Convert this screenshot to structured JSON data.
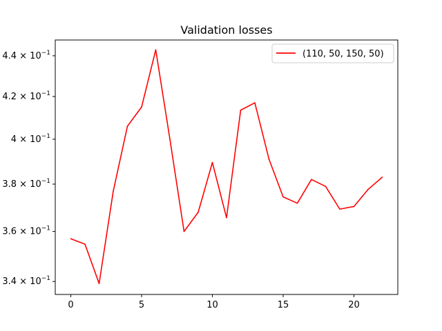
{
  "chart_data": {
    "type": "line",
    "title": "Validation losses",
    "xlabel": "",
    "ylabel": "",
    "y_scale": "log",
    "xlim": [
      -1.1,
      23.1
    ],
    "ylim": [
      0.335,
      0.448
    ],
    "x_ticks": [
      0,
      5,
      10,
      15,
      20
    ],
    "y_ticks": [
      {
        "value": 0.34,
        "mantissa": "3.4"
      },
      {
        "value": 0.36,
        "mantissa": "3.6"
      },
      {
        "value": 0.38,
        "mantissa": "3.8"
      },
      {
        "value": 0.4,
        "mantissa": "4"
      },
      {
        "value": 0.42,
        "mantissa": "4.2"
      },
      {
        "value": 0.44,
        "mantissa": "4.4"
      }
    ],
    "y_tick_base": "10",
    "y_tick_exponent": "−1",
    "legend_position": "top-right",
    "grid": false,
    "series": [
      {
        "name": "(110, 50, 150, 50)",
        "color": "#ff0000",
        "x": [
          0,
          1,
          2,
          3,
          4,
          5,
          6,
          7,
          8,
          9,
          10,
          11,
          12,
          13,
          14,
          15,
          16,
          17,
          18,
          19,
          20,
          21,
          22
        ],
        "values": [
          0.357,
          0.3548,
          0.3392,
          0.377,
          0.406,
          0.415,
          0.443,
          0.4,
          0.36,
          0.368,
          0.3895,
          0.3657,
          0.4135,
          0.417,
          0.391,
          0.3745,
          0.3718,
          0.382,
          0.379,
          0.3693,
          0.3704,
          0.3777,
          0.383
        ]
      }
    ]
  }
}
